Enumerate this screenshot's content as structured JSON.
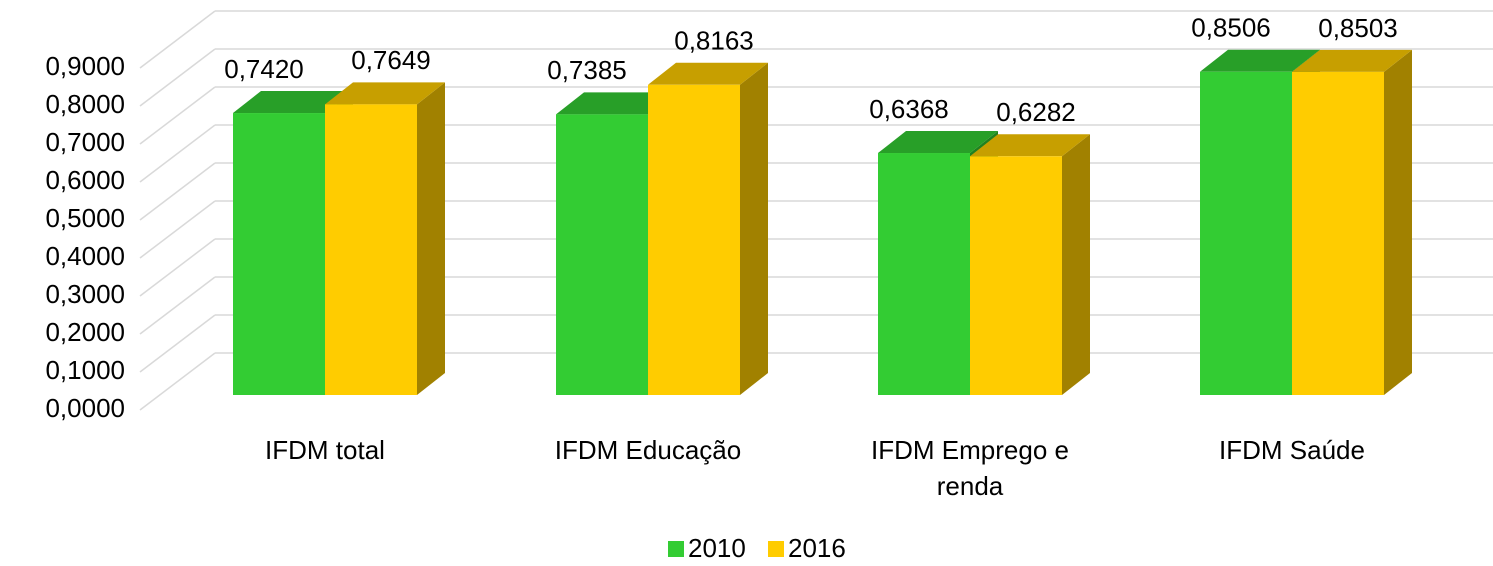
{
  "chart_data": {
    "type": "bar3d",
    "categories": [
      "IFDM total",
      "IFDM Educação",
      "IFDM Emprego e renda",
      "IFDM Saúde"
    ],
    "series": [
      {
        "name": "2010",
        "color": "#33cc33",
        "values": [
          0.742,
          0.7385,
          0.6368,
          0.8506
        ],
        "value_labels": [
          "0,7420",
          "0,7385",
          "0,6368",
          "0,8506"
        ]
      },
      {
        "name": "2016",
        "color": "#ffcc00",
        "values": [
          0.7649,
          0.8163,
          0.6282,
          0.8503
        ],
        "value_labels": [
          "0,7649",
          "0,8163",
          "0,6282",
          "0,8503"
        ]
      }
    ],
    "ylim": [
      0,
      0.9
    ],
    "yticks": [
      {
        "value": 0,
        "label": "0,0000"
      },
      {
        "value": 0.1,
        "label": "0,1000"
      },
      {
        "value": 0.2,
        "label": "0,2000"
      },
      {
        "value": 0.3,
        "label": "0,3000"
      },
      {
        "value": 0.4,
        "label": "0,4000"
      },
      {
        "value": 0.5,
        "label": "0,5000"
      },
      {
        "value": 0.6,
        "label": "0,6000"
      },
      {
        "value": 0.7,
        "label": "0,7000"
      },
      {
        "value": 0.8,
        "label": "0,8000"
      },
      {
        "value": 0.9,
        "label": "0,9000"
      }
    ],
    "grid": true,
    "legend": "bottom"
  }
}
